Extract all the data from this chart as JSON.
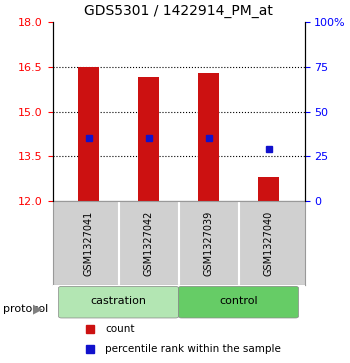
{
  "title": "GDS5301 / 1422914_PM_at",
  "samples": [
    "GSM1327041",
    "GSM1327042",
    "GSM1327039",
    "GSM1327040"
  ],
  "bar_bottoms": [
    12,
    12,
    12,
    12
  ],
  "bar_tops": [
    16.5,
    16.15,
    16.3,
    12.8
  ],
  "bar_color": "#cc1111",
  "bar_width": 0.35,
  "percentile_values": [
    14.12,
    14.12,
    14.12,
    13.75
  ],
  "percentile_color": "#1111cc",
  "ylim_left": [
    12,
    18
  ],
  "yticks_left": [
    12,
    13.5,
    15,
    16.5,
    18
  ],
  "ylim_right": [
    0,
    100
  ],
  "yticks_right": [
    0,
    25,
    50,
    75,
    100
  ],
  "ytick_labels_right": [
    "0",
    "25",
    "50",
    "75",
    "100%"
  ],
  "grid_dotted_at": [
    13.5,
    15,
    16.5
  ],
  "background_plot": "#ffffff",
  "background_label_row": "#d0d0d0",
  "group_castration_color": "#b3e6b3",
  "group_control_color": "#66cc66",
  "legend_count_label": "count",
  "legend_percentile_label": "percentile rank within the sample",
  "x_positions": [
    0,
    1,
    2,
    3
  ]
}
